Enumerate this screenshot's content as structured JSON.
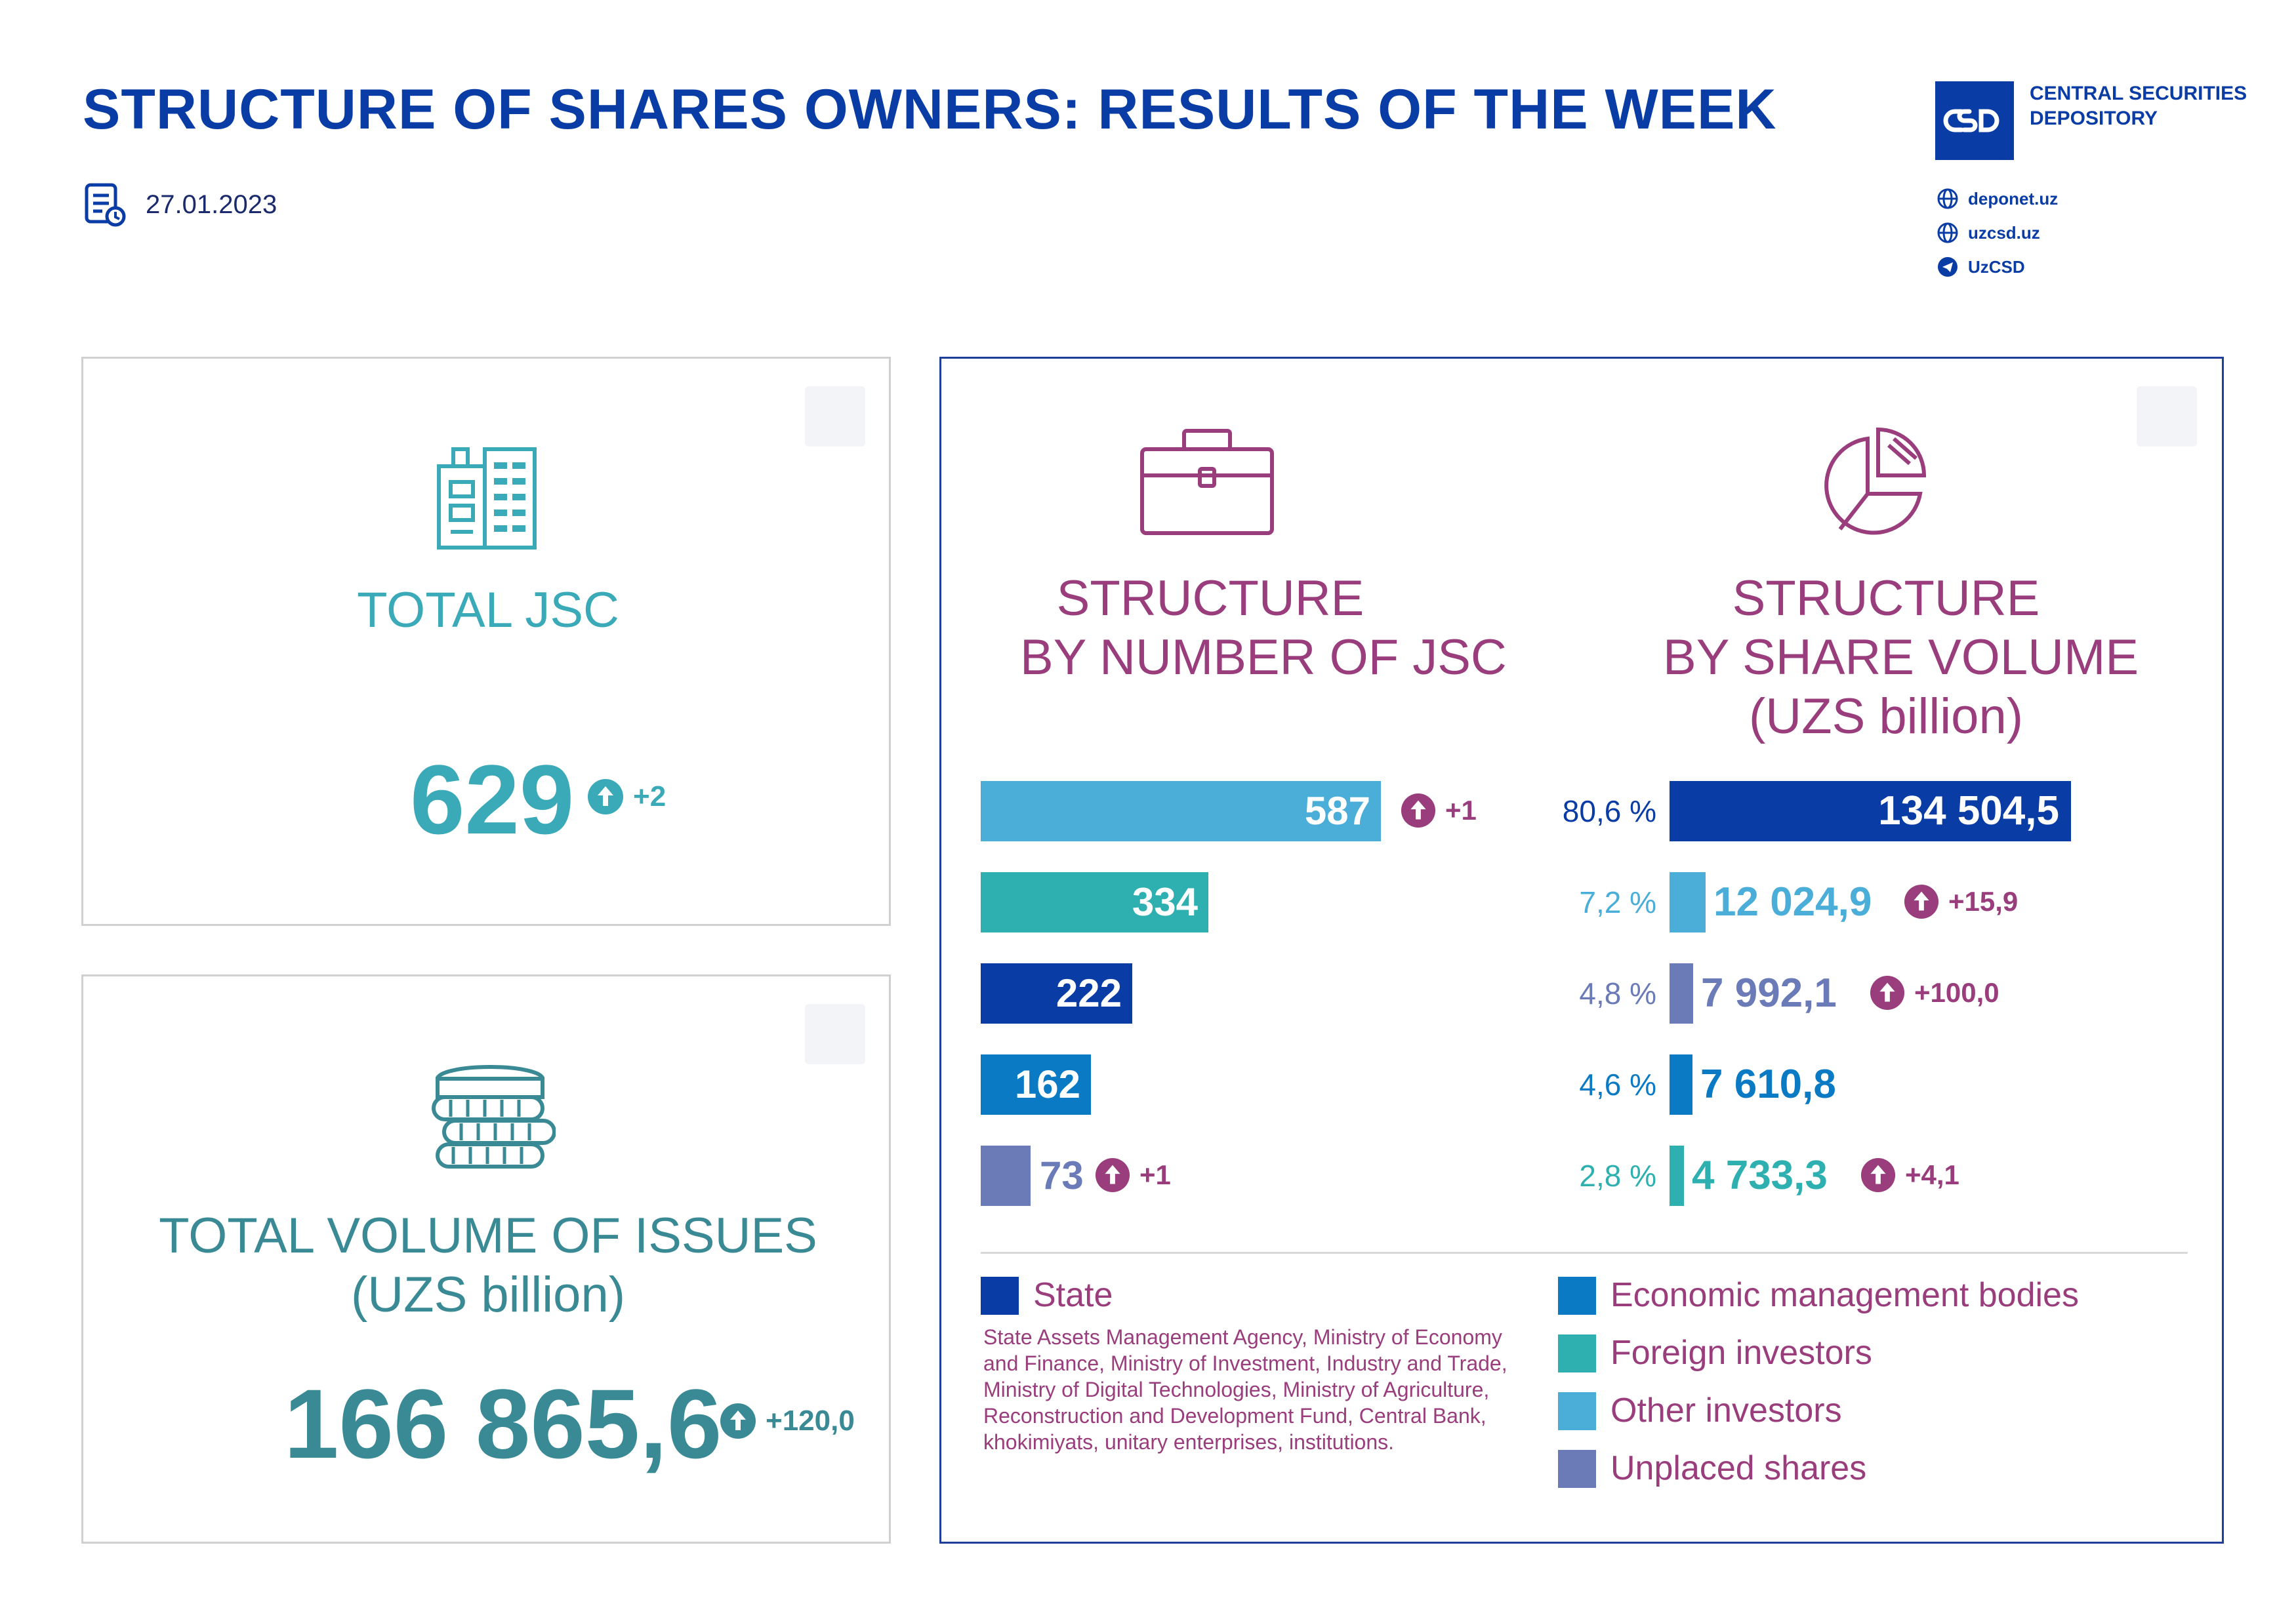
{
  "header": {
    "title": "STRUCTURE OF SHARES OWNERS: RESULTS OF THE WEEK",
    "date": "27.01.2023",
    "org_name": "CENTRAL SECURITIES DEPOSITORY",
    "links": [
      "deponet.uz",
      "uzcsd.uz",
      "UzCSD"
    ]
  },
  "total_jsc": {
    "label": "TOTAL JSC",
    "value": "629",
    "delta": "+2"
  },
  "total_volume": {
    "label_line1": "TOTAL VOLUME OF ISSUES",
    "label_line2": "(UZS billion)",
    "value": "166 865,6",
    "delta": "+120,0"
  },
  "structure": {
    "jsc_title_line1": "STRUCTURE",
    "jsc_title_line2": "BY NUMBER OF JSC",
    "vol_title_line1": "STRUCTURE",
    "vol_title_line2": "BY SHARE VOLUME",
    "vol_title_line3": "(UZS billion)"
  },
  "colors": {
    "other": "#4aaed8",
    "foreign": "#2eb0b0",
    "state": "#0a3ca5",
    "economic": "#0b7ac4",
    "unplaced": "#6b7bb8",
    "purple": "#9a3d7c",
    "teal": "#3aaab8"
  },
  "chart_data": [
    {
      "type": "bar",
      "title": "STRUCTURE BY NUMBER OF JSC",
      "orientation": "horizontal",
      "categories": [
        "Other investors",
        "Foreign investors",
        "State",
        "Economic management bodies",
        "Unplaced shares"
      ],
      "values": [
        587,
        334,
        222,
        162,
        73
      ],
      "labels": [
        "587",
        "334",
        "222",
        "162",
        "73"
      ],
      "deltas": [
        "+1",
        "",
        "",
        "",
        "+1"
      ],
      "colors": [
        "#4aaed8",
        "#2eb0b0",
        "#0a3ca5",
        "#0b7ac4",
        "#6b7bb8"
      ],
      "xlim": [
        0,
        587
      ]
    },
    {
      "type": "bar",
      "title": "STRUCTURE BY SHARE VOLUME (UZS billion)",
      "orientation": "horizontal",
      "categories": [
        "State",
        "Other investors",
        "Unplaced shares",
        "Economic management bodies",
        "Foreign investors"
      ],
      "values": [
        134504.5,
        12024.9,
        7992.1,
        7610.8,
        4733.3
      ],
      "labels": [
        "134 504,5",
        "12 024,9",
        "7 992,1",
        "7 610,8",
        "4 733,3"
      ],
      "percents": [
        "80,6 %",
        "7,2 %",
        "4,8 %",
        "4,6 %",
        "2,8 %"
      ],
      "deltas": [
        "",
        "+15,9",
        "+100,0",
        "",
        "+4,1"
      ],
      "colors": [
        "#0a3ca5",
        "#4aaed8",
        "#6b7bb8",
        "#0b7ac4",
        "#2eb0b0"
      ],
      "xlim": [
        0,
        134504.5
      ]
    }
  ],
  "legend": {
    "state": "State",
    "state_desc": "State Assets Management Agency, Ministry of Economy and Finance, Ministry of Investment, Industry and Trade, Ministry of Digital Technologies, Ministry of Agriculture, Reconstruction and Development Fund, Central Bank, khokimiyats, unitary enterprises, institutions.",
    "economic": "Economic management bodies",
    "foreign": "Foreign investors",
    "other": "Other investors",
    "unplaced": "Unplaced shares"
  }
}
